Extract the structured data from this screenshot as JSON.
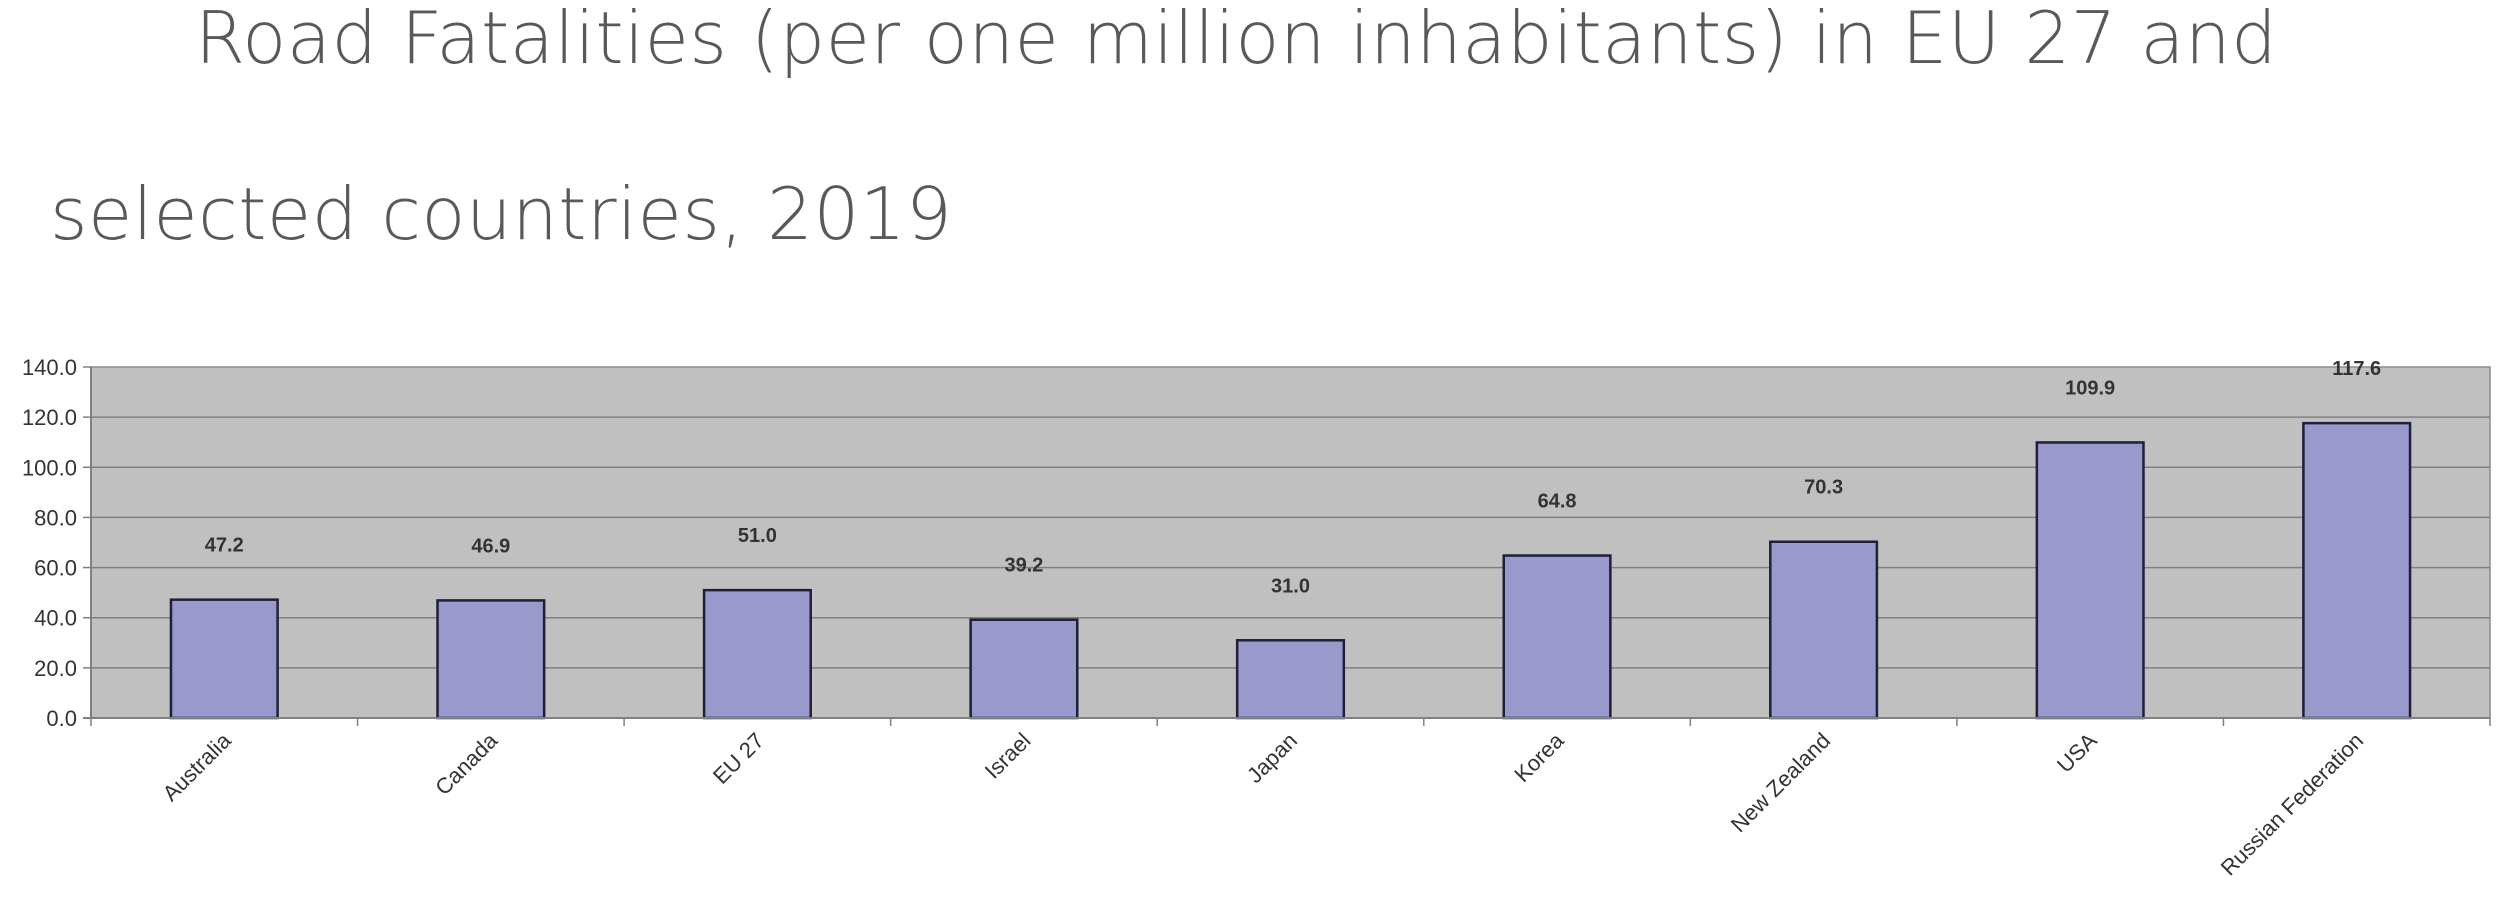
{
  "page_title": {
    "line1": "Road Fatalities (per one million inhabitants) in EU 27 and",
    "line2": "selected countries, 2019"
  },
  "chart_data": {
    "type": "bar",
    "title": "Road Fatalities (per one million inhabitants) in EU 27 and selected countries, 2019",
    "xlabel": "",
    "ylabel": "",
    "categories": [
      "Australia",
      "Canada",
      "EU 27",
      "Israel",
      "Japan",
      "Korea",
      "New Zealand",
      "USA",
      "Russian Federation"
    ],
    "values": [
      47.2,
      46.9,
      51.0,
      39.2,
      31.0,
      64.8,
      70.3,
      109.9,
      117.6
    ],
    "data_labels": [
      "47.2",
      "46.9",
      "51.0",
      "39.2",
      "31.0",
      "64.8",
      "70.3",
      "109.9",
      "117.6"
    ],
    "ylim": [
      0,
      140
    ],
    "y_ticks": [
      "0.0",
      "20.0",
      "40.0",
      "60.0",
      "80.0",
      "100.0",
      "120.0",
      "140.0"
    ],
    "grid": true,
    "legend": "none",
    "colors": {
      "bar_fill": "#9999cc",
      "bar_stroke": "#1f1f3a",
      "plot_background": "#c0c0c0",
      "gridline": "#7f7f7f",
      "axis": "#808080",
      "text": "#333333"
    }
  }
}
